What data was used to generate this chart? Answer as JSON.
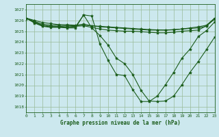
{
  "title": "Graphe pression niveau de la mer (hPa)",
  "bg_color": "#cce8ee",
  "grid_color": "#99bb99",
  "line_color": "#1a5c1a",
  "text_color": "#1a5c1a",
  "xlim": [
    0,
    23
  ],
  "ylim": [
    1017.5,
    1027.5
  ],
  "yticks": [
    1018,
    1019,
    1020,
    1021,
    1022,
    1023,
    1024,
    1025,
    1026,
    1027
  ],
  "xticks": [
    0,
    1,
    2,
    3,
    4,
    5,
    6,
    7,
    8,
    9,
    10,
    11,
    12,
    13,
    14,
    15,
    16,
    17,
    18,
    19,
    20,
    21,
    22,
    23
  ],
  "series": [
    [
      1026.2,
      1026.0,
      1025.8,
      1025.7,
      1025.6,
      1025.6,
      1025.55,
      1025.65,
      1025.5,
      1025.4,
      1025.35,
      1025.3,
      1025.25,
      1025.2,
      1025.15,
      1025.1,
      1025.1,
      1025.1,
      1025.15,
      1025.2,
      1025.25,
      1025.3,
      1025.45,
      1026.2
    ],
    [
      1026.2,
      1025.9,
      1025.65,
      1025.55,
      1025.55,
      1025.5,
      1025.5,
      1025.55,
      1025.5,
      1025.45,
      1025.4,
      1025.35,
      1025.3,
      1025.25,
      1025.2,
      1025.15,
      1025.12,
      1025.1,
      1025.12,
      1025.2,
      1025.3,
      1025.4,
      1025.55,
      1026.2
    ],
    [
      1026.2,
      1025.85,
      1025.55,
      1025.45,
      1025.45,
      1025.4,
      1025.45,
      1025.5,
      1025.35,
      1025.2,
      1025.1,
      1025.05,
      1025.0,
      1025.0,
      1024.95,
      1024.9,
      1024.85,
      1024.85,
      1024.9,
      1025.0,
      1025.05,
      1025.1,
      1025.5,
      1026.1
    ],
    [
      1026.2,
      1025.8,
      1025.5,
      1025.4,
      1025.4,
      1025.35,
      1025.4,
      1026.5,
      1025.3,
      1024.6,
      1023.7,
      1022.5,
      1022.0,
      1021.0,
      1019.55,
      1018.55,
      1018.5,
      1018.55,
      1019.0,
      1020.05,
      1021.2,
      1022.2,
      1023.3,
      1024.45
    ],
    [
      1026.2,
      1025.75,
      1025.45,
      1025.35,
      1025.35,
      1025.3,
      1025.3,
      1026.5,
      1026.4,
      1023.8,
      1022.3,
      1021.0,
      1020.9,
      1019.6,
      1018.5,
      1018.5,
      1019.0,
      1020.05,
      1021.2,
      1022.5,
      1023.35,
      1024.5,
      1025.05,
      1025.85
    ]
  ]
}
